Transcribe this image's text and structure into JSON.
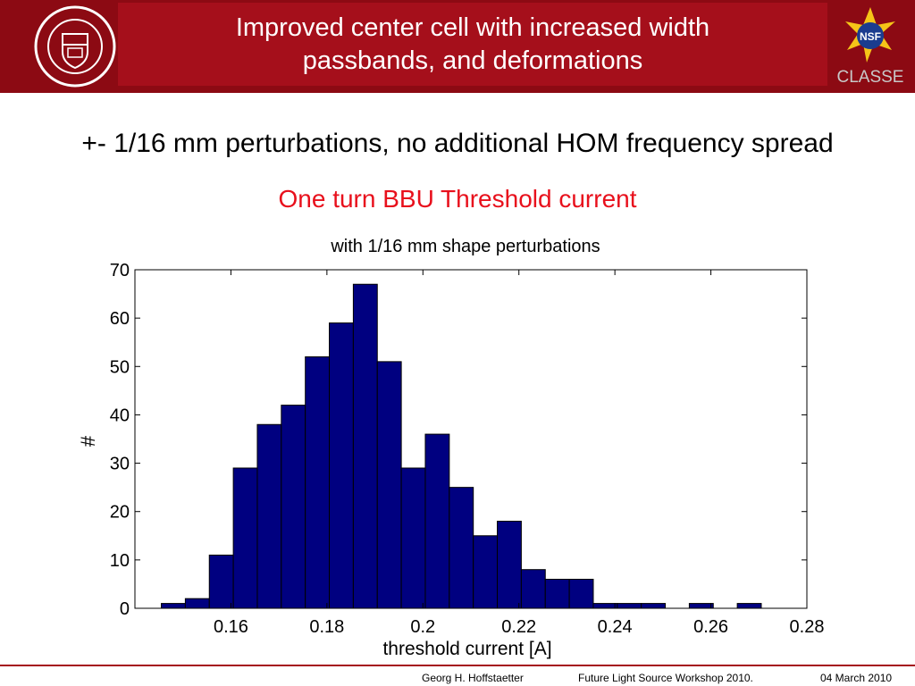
{
  "header": {
    "title_line1": "Improved center cell with increased width",
    "title_line2": "passbands, and deformations",
    "logo_text": "CLASSE",
    "nsf_text": "NSF"
  },
  "body": {
    "subtitle": "+- 1/16 mm perturbations, no additional HOM frequency spread",
    "subtitle2": "One turn BBU Threshold current"
  },
  "chart_data": {
    "type": "bar",
    "title": "with 1/16 mm shape perturbations",
    "xlabel": "threshold current [A]",
    "ylabel": "#",
    "xlim": [
      0.14,
      0.28
    ],
    "ylim": [
      0,
      70
    ],
    "xticks": [
      "0.16",
      "0.18",
      "0.2",
      "0.22",
      "0.24",
      "0.26",
      "0.28"
    ],
    "yticks": [
      "0",
      "10",
      "20",
      "30",
      "40",
      "50",
      "60",
      "70"
    ],
    "bar_color": "#000080",
    "bins": [
      {
        "x": 0.148,
        "value": 1
      },
      {
        "x": 0.153,
        "value": 2
      },
      {
        "x": 0.158,
        "value": 11
      },
      {
        "x": 0.163,
        "value": 29
      },
      {
        "x": 0.168,
        "value": 38
      },
      {
        "x": 0.173,
        "value": 42
      },
      {
        "x": 0.178,
        "value": 52
      },
      {
        "x": 0.183,
        "value": 59
      },
      {
        "x": 0.188,
        "value": 67
      },
      {
        "x": 0.193,
        "value": 51
      },
      {
        "x": 0.198,
        "value": 29
      },
      {
        "x": 0.203,
        "value": 36
      },
      {
        "x": 0.208,
        "value": 25
      },
      {
        "x": 0.213,
        "value": 15
      },
      {
        "x": 0.218,
        "value": 18
      },
      {
        "x": 0.223,
        "value": 8
      },
      {
        "x": 0.228,
        "value": 6
      },
      {
        "x": 0.233,
        "value": 6
      },
      {
        "x": 0.238,
        "value": 1
      },
      {
        "x": 0.243,
        "value": 1
      },
      {
        "x": 0.248,
        "value": 1
      },
      {
        "x": 0.258,
        "value": 1
      },
      {
        "x": 0.268,
        "value": 1
      }
    ],
    "bin_width": 0.005
  },
  "footer": {
    "author": "Georg H. Hoffstaetter",
    "event": "Future Light Source Workshop 2010.",
    "date": "04 March 2010"
  }
}
